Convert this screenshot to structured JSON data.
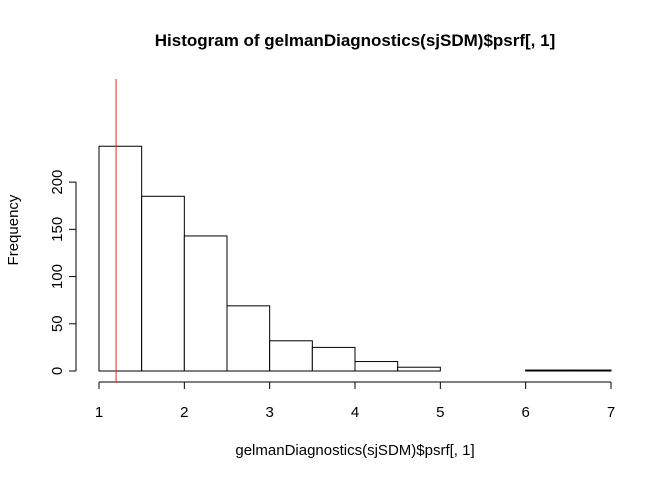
{
  "chart_data": {
    "type": "bar",
    "subtype": "histogram",
    "title": "Histogram of gelmanDiagnostics(sjSDM)$psrf[, 1]",
    "xlabel": "gelmanDiagnostics(sjSDM)$psrf[, 1]",
    "ylabel": "Frequency",
    "bins": [
      {
        "start": 1.0,
        "end": 1.5,
        "count": 238
      },
      {
        "start": 1.5,
        "end": 2.0,
        "count": 185
      },
      {
        "start": 2.0,
        "end": 2.5,
        "count": 143
      },
      {
        "start": 2.5,
        "end": 3.0,
        "count": 69
      },
      {
        "start": 3.0,
        "end": 3.5,
        "count": 32
      },
      {
        "start": 3.5,
        "end": 4.0,
        "count": 25
      },
      {
        "start": 4.0,
        "end": 4.5,
        "count": 10
      },
      {
        "start": 4.5,
        "end": 5.0,
        "count": 4
      },
      {
        "start": 5.0,
        "end": 5.5,
        "count": 0
      },
      {
        "start": 5.5,
        "end": 6.0,
        "count": 0
      },
      {
        "start": 6.0,
        "end": 6.5,
        "count": 1
      },
      {
        "start": 6.5,
        "end": 7.0,
        "count": 1
      }
    ],
    "xlim": [
      1,
      7
    ],
    "ylim": [
      0,
      250
    ],
    "xticks": [
      "1",
      "2",
      "3",
      "4",
      "5",
      "6",
      "7"
    ],
    "yticks": [
      "0",
      "50",
      "100",
      "150",
      "200"
    ],
    "reference_line": {
      "x": 1.2,
      "color": "#e8262b"
    },
    "bar_fill": "#ffffff",
    "bar_stroke": "#000000",
    "grid": false,
    "legend": "none"
  }
}
